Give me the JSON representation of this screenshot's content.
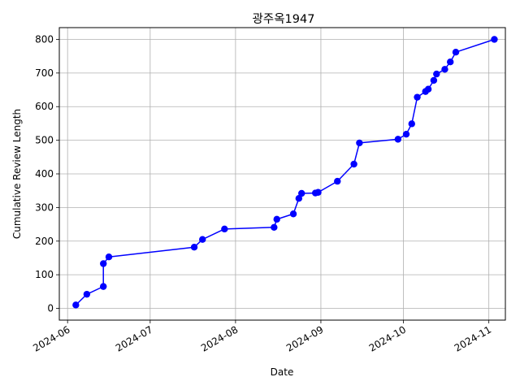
{
  "chart_data": {
    "type": "line",
    "title": "광주옥1947",
    "xlabel": "Date",
    "ylabel": "Cumulative Review Length",
    "x_ticks": [
      "2024-06",
      "2024-07",
      "2024-08",
      "2024-09",
      "2024-10",
      "2024-11"
    ],
    "y_ticks": [
      "0",
      "100",
      "200",
      "300",
      "400",
      "500",
      "600",
      "700",
      "800"
    ],
    "xlim": [
      "2024-05-29",
      "2024-11-07"
    ],
    "ylim": [
      -35,
      835
    ],
    "grid": true,
    "series": [
      {
        "color": "#0000ff",
        "marker": "circle",
        "points": [
          {
            "x": "2024-06-04",
            "y": 10
          },
          {
            "x": "2024-06-08",
            "y": 42
          },
          {
            "x": "2024-06-14",
            "y": 65
          },
          {
            "x": "2024-06-14",
            "y": 133
          },
          {
            "x": "2024-06-16",
            "y": 153
          },
          {
            "x": "2024-07-17",
            "y": 182
          },
          {
            "x": "2024-07-20",
            "y": 205
          },
          {
            "x": "2024-07-28",
            "y": 236
          },
          {
            "x": "2024-08-15",
            "y": 241
          },
          {
            "x": "2024-08-16",
            "y": 265
          },
          {
            "x": "2024-08-22",
            "y": 281
          },
          {
            "x": "2024-08-24",
            "y": 327
          },
          {
            "x": "2024-08-25",
            "y": 342
          },
          {
            "x": "2024-08-30",
            "y": 343
          },
          {
            "x": "2024-08-31",
            "y": 345
          },
          {
            "x": "2024-09-07",
            "y": 378
          },
          {
            "x": "2024-09-13",
            "y": 429
          },
          {
            "x": "2024-09-15",
            "y": 492
          },
          {
            "x": "2024-09-29",
            "y": 503
          },
          {
            "x": "2024-10-02",
            "y": 518
          },
          {
            "x": "2024-10-04",
            "y": 549
          },
          {
            "x": "2024-10-06",
            "y": 628
          },
          {
            "x": "2024-10-09",
            "y": 645
          },
          {
            "x": "2024-10-10",
            "y": 652
          },
          {
            "x": "2024-10-12",
            "y": 678
          },
          {
            "x": "2024-10-13",
            "y": 697
          },
          {
            "x": "2024-10-16",
            "y": 711
          },
          {
            "x": "2024-10-18",
            "y": 733
          },
          {
            "x": "2024-10-20",
            "y": 762
          },
          {
            "x": "2024-11-03",
            "y": 800
          }
        ]
      }
    ]
  }
}
